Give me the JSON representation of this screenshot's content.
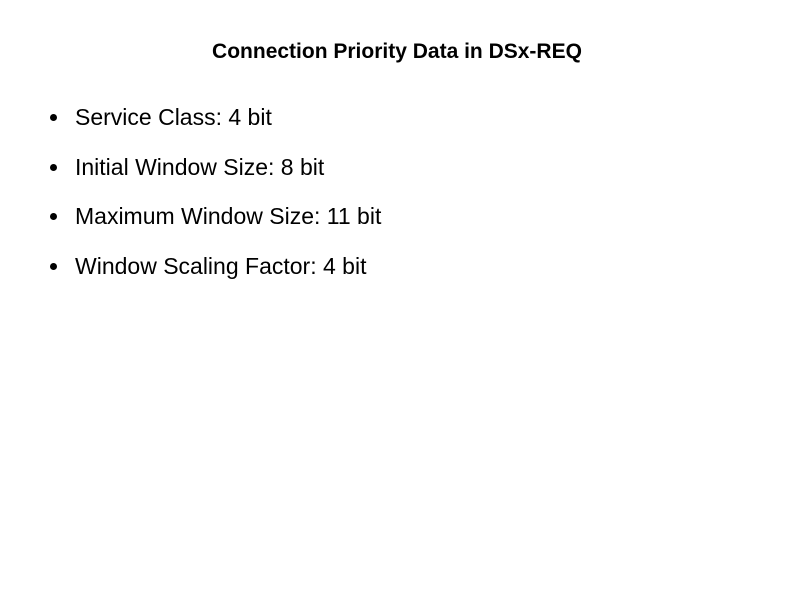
{
  "title": "Connection Priority Data in DSx-REQ",
  "title_fontsize": 21,
  "title_fontweight": "bold",
  "bullets": [
    {
      "text": "Service Class: 4 bit"
    },
    {
      "text": "Initial Window Size: 8 bit"
    },
    {
      "text": "Maximum Window Size: 11 bit"
    },
    {
      "text": "Window Scaling Factor: 4 bit"
    }
  ],
  "bullet_fontsize": 23,
  "colors": {
    "background": "#ffffff",
    "text": "#000000",
    "bullet_marker": "#000000"
  }
}
